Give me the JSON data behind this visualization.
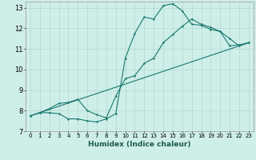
{
  "xlabel": "Humidex (Indice chaleur)",
  "bg_color": "#ceeee8",
  "grid_color": "#b8dcd6",
  "line_color": "#1a7a6e",
  "xlim": [
    -0.5,
    23.5
  ],
  "ylim": [
    7,
    13.3
  ],
  "xticks": [
    0,
    1,
    2,
    3,
    4,
    5,
    6,
    7,
    8,
    9,
    10,
    11,
    12,
    13,
    14,
    15,
    16,
    17,
    18,
    19,
    20,
    21,
    22,
    23
  ],
  "yticks": [
    7,
    8,
    9,
    10,
    11,
    12,
    13
  ],
  "curve1_x": [
    0,
    1,
    2,
    3,
    4,
    5,
    6,
    7,
    8,
    9,
    10,
    11,
    12,
    13,
    14,
    15,
    16,
    17,
    18,
    19,
    20,
    21,
    22,
    23
  ],
  "curve1_y": [
    7.75,
    7.9,
    7.9,
    7.85,
    7.6,
    7.6,
    7.5,
    7.45,
    7.6,
    7.85,
    10.55,
    11.75,
    12.55,
    12.45,
    13.1,
    13.2,
    12.85,
    12.2,
    12.15,
    11.95,
    11.85,
    11.15,
    11.2,
    11.3
  ],
  "curve2_x": [
    0,
    1,
    2,
    3,
    4,
    5,
    6,
    7,
    8,
    9,
    10,
    11,
    12,
    13,
    14,
    15,
    16,
    17,
    18,
    19,
    20,
    21,
    22,
    23
  ],
  "curve2_y": [
    7.75,
    7.9,
    8.1,
    8.35,
    8.4,
    8.55,
    8.0,
    7.8,
    7.65,
    8.7,
    9.55,
    9.7,
    10.3,
    10.55,
    11.3,
    11.7,
    12.1,
    12.45,
    12.2,
    12.05,
    11.85,
    11.5,
    11.15,
    11.3
  ],
  "curve3_x": [
    0,
    23
  ],
  "curve3_y": [
    7.75,
    11.3
  ]
}
